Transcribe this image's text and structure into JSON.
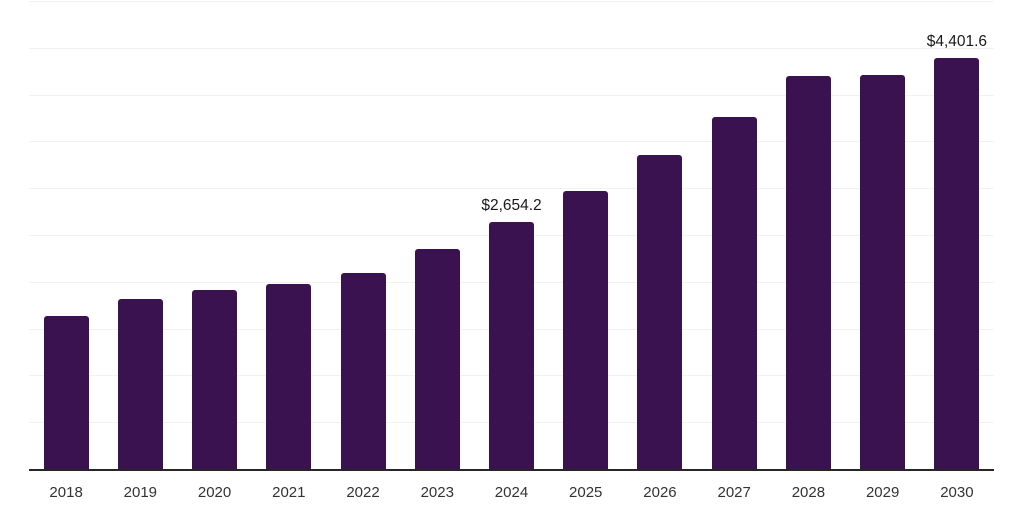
{
  "chart_data": {
    "type": "bar",
    "title": "",
    "xlabel": "",
    "ylabel": "",
    "categories": [
      "2018",
      "2019",
      "2020",
      "2021",
      "2022",
      "2023",
      "2024",
      "2025",
      "2026",
      "2027",
      "2028",
      "2029",
      "2030"
    ],
    "values": [
      1645,
      1830,
      1925,
      1990,
      2105,
      2365,
      2654.2,
      2980,
      3365,
      3770,
      4210,
      4225,
      4401.6
    ],
    "data_labels": [
      "",
      "",
      "",
      "",
      "",
      "",
      "$2,654.2",
      "",
      "",
      "",
      "",
      "",
      "$4,401.6"
    ],
    "ylim": [
      0,
      5000
    ],
    "grid_step": 500,
    "grid": "horizontal",
    "legend": "none",
    "colors": {
      "bar": "#3a1250",
      "gridline": "#f2f2f2",
      "axis_line": "#262626",
      "tick_label": "#333333",
      "data_label": "#1a1a1a"
    }
  }
}
